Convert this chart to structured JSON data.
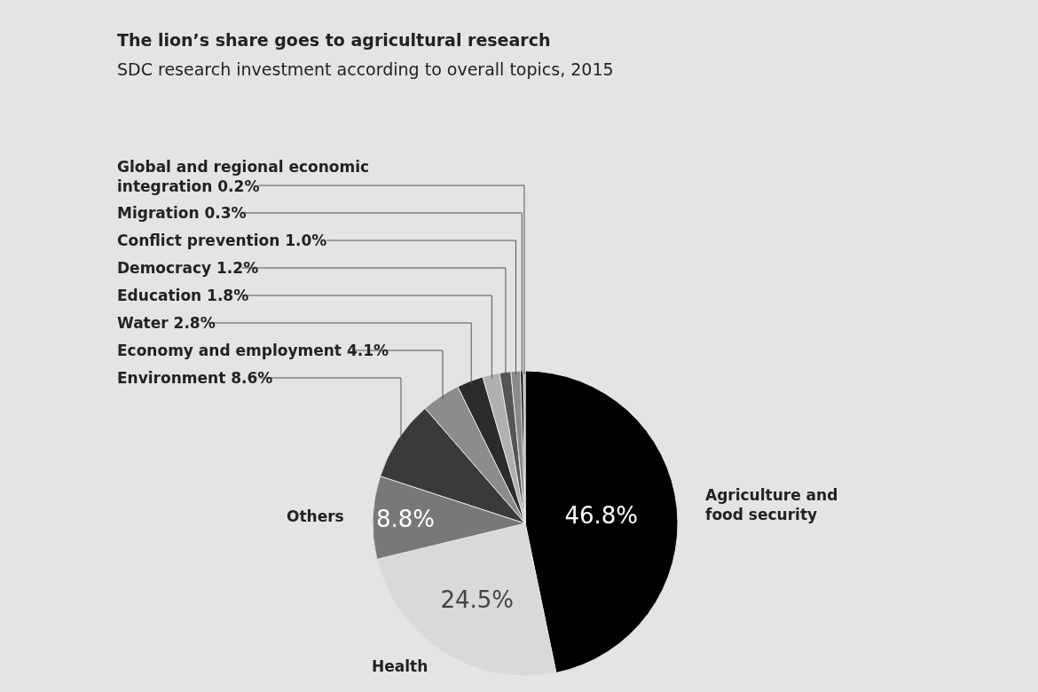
{
  "chart_data": {
    "type": "pie",
    "title": "The lion’s share goes to agricultural research",
    "subtitle": "SDC research investment according to overall topics, 2015",
    "categories": [
      "Agriculture and food security",
      "Health",
      "Others",
      "Environment",
      "Economy and employment",
      "Water",
      "Education",
      "Democracy",
      "Conflict prevention",
      "Migration",
      "Global and regional economic integration"
    ],
    "values": [
      46.8,
      24.5,
      8.8,
      8.6,
      4.1,
      2.8,
      1.8,
      1.2,
      1.0,
      0.3,
      0.2
    ],
    "value_labels": [
      "46.8%",
      "24.5%",
      "8.8%",
      "8.6%",
      "4.1%",
      "2.8%",
      "1.8%",
      "1.2%",
      "1.0%",
      "0.3%",
      "0.2%"
    ],
    "colors": [
      "#000000",
      "#d9d9d9",
      "#787878",
      "#3a3a3a",
      "#8c8c8c",
      "#2b2b2b",
      "#b0b0b0",
      "#555555",
      "#8a8a8a",
      "#000000",
      "#9a9a9a"
    ],
    "legend": false
  }
}
